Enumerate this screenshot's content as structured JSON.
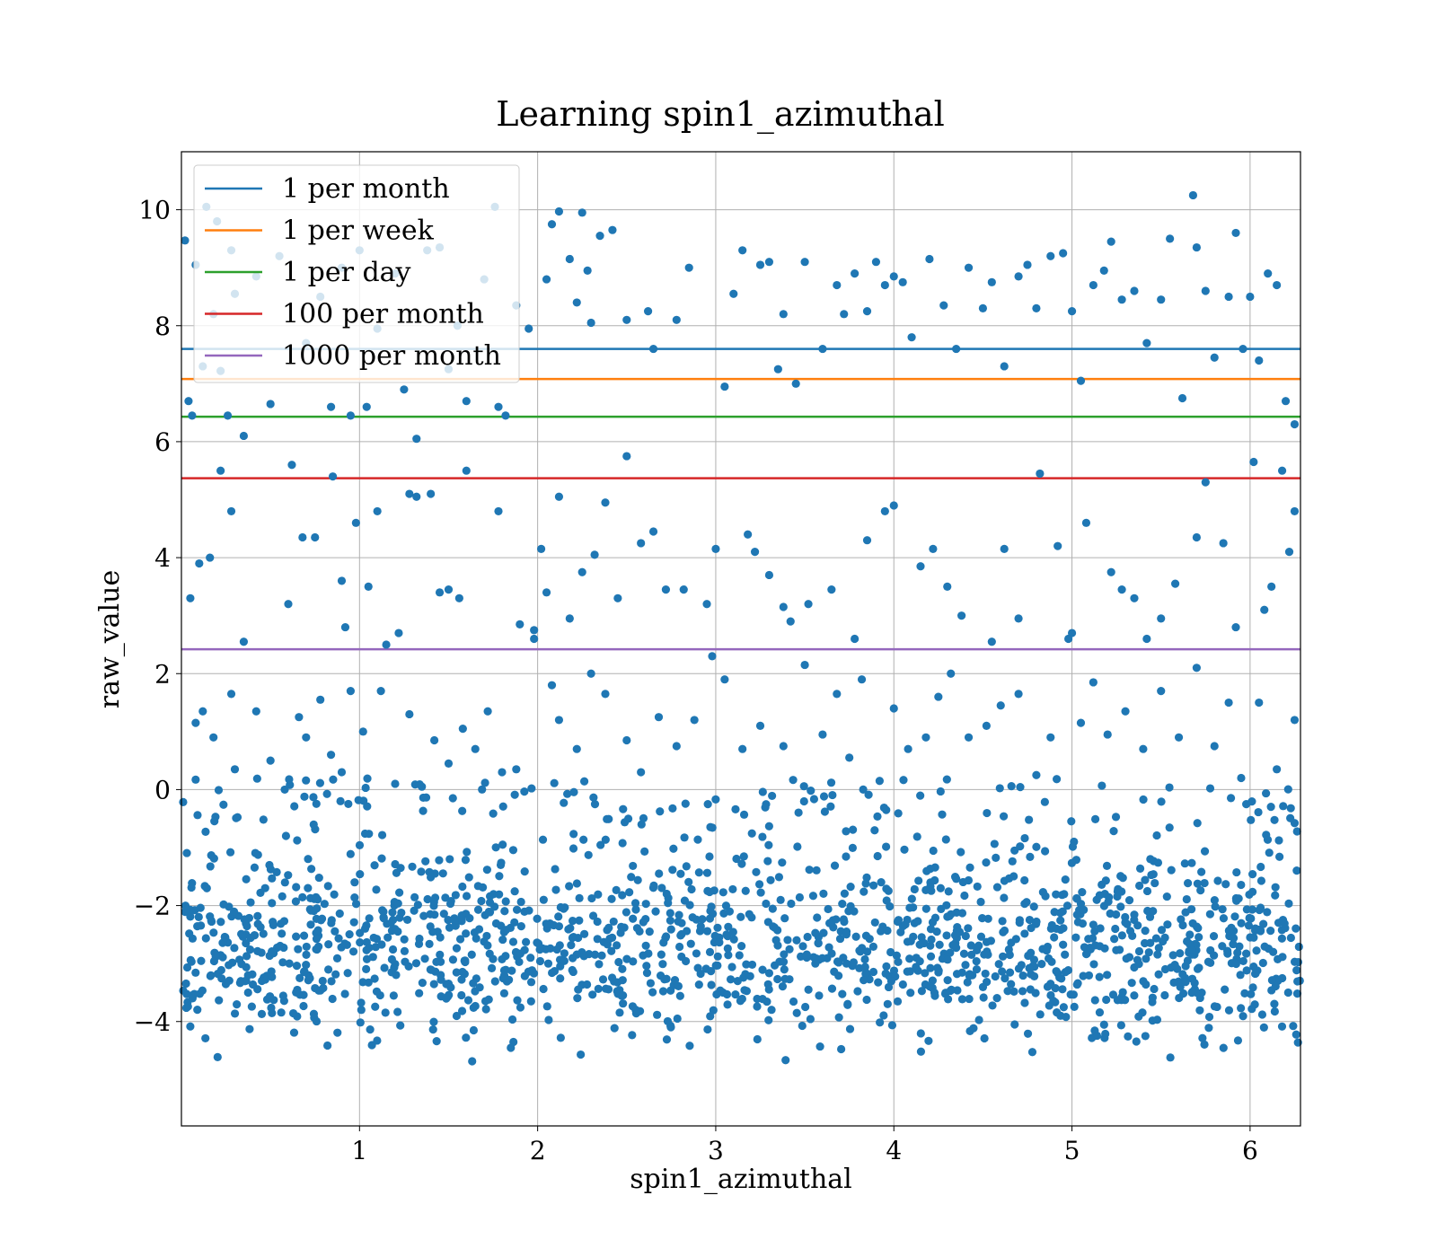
{
  "chart_data": {
    "type": "scatter",
    "title": "Learning spin1_azimuthal",
    "xlabel": "spin1_azimuthal",
    "ylabel": "raw_value",
    "xlim": [
      0,
      6.283
    ],
    "ylim": [
      -5.8,
      11.0
    ],
    "x_ticks": [
      1,
      2,
      3,
      4,
      5,
      6
    ],
    "x_tick_labels": [
      "1",
      "2",
      "3",
      "4",
      "5",
      "6"
    ],
    "y_ticks": [
      -4,
      -2,
      0,
      2,
      4,
      6,
      8,
      10
    ],
    "y_tick_labels": [
      "−4",
      "−2",
      "0",
      "2",
      "4",
      "6",
      "8",
      "10"
    ],
    "grid": true,
    "legend_placement": "upper-left",
    "scatter_color": "#1f77b4",
    "scatter_note_points_sampled": true,
    "thresholds": [
      {
        "name": "1 per month",
        "y": 7.6,
        "color": "#1f77b4"
      },
      {
        "name": "1 per week",
        "y": 7.08,
        "color": "#ff7f0e"
      },
      {
        "name": "1 per day",
        "y": 6.43,
        "color": "#2ca02c"
      },
      {
        "name": "100 per month",
        "y": 5.37,
        "color": "#d62728"
      },
      {
        "name": "1000 per month",
        "y": 2.42,
        "color": "#9467bd"
      }
    ],
    "points": [
      [
        0.02,
        9.47
      ],
      [
        0.04,
        6.7
      ],
      [
        0.06,
        6.45
      ],
      [
        0.08,
        9.05
      ],
      [
        0.12,
        7.3
      ],
      [
        0.14,
        10.05
      ],
      [
        0.18,
        8.2
      ],
      [
        0.2,
        9.8
      ],
      [
        0.22,
        7.22
      ],
      [
        0.26,
        6.45
      ],
      [
        0.28,
        9.3
      ],
      [
        0.3,
        8.55
      ],
      [
        0.35,
        6.1
      ],
      [
        0.42,
        8.85
      ],
      [
        0.5,
        6.65
      ],
      [
        0.55,
        9.2
      ],
      [
        0.62,
        5.6
      ],
      [
        0.7,
        7.7
      ],
      [
        0.78,
        8.5
      ],
      [
        0.84,
        6.6
      ],
      [
        0.9,
        9.0
      ],
      [
        0.95,
        6.45
      ],
      [
        1.0,
        9.3
      ],
      [
        1.04,
        6.6
      ],
      [
        1.1,
        7.95
      ],
      [
        1.2,
        8.9
      ],
      [
        1.25,
        6.9
      ],
      [
        1.32,
        6.05
      ],
      [
        1.38,
        9.3
      ],
      [
        1.45,
        9.35
      ],
      [
        1.5,
        7.25
      ],
      [
        1.55,
        8.0
      ],
      [
        1.6,
        6.7
      ],
      [
        1.7,
        8.8
      ],
      [
        1.76,
        10.05
      ],
      [
        1.78,
        6.6
      ],
      [
        1.82,
        6.45
      ],
      [
        1.88,
        8.35
      ],
      [
        1.95,
        7.95
      ],
      [
        2.05,
        8.8
      ],
      [
        2.08,
        9.75
      ],
      [
        2.12,
        9.97
      ],
      [
        2.18,
        9.15
      ],
      [
        2.22,
        8.4
      ],
      [
        2.25,
        9.95
      ],
      [
        2.28,
        8.95
      ],
      [
        2.3,
        8.05
      ],
      [
        2.35,
        9.55
      ],
      [
        2.42,
        9.65
      ],
      [
        2.5,
        8.1
      ],
      [
        2.62,
        8.25
      ],
      [
        2.65,
        7.6
      ],
      [
        2.78,
        8.1
      ],
      [
        2.85,
        9.0
      ],
      [
        3.05,
        6.95
      ],
      [
        3.1,
        8.55
      ],
      [
        3.15,
        9.3
      ],
      [
        3.25,
        9.05
      ],
      [
        3.3,
        9.1
      ],
      [
        3.35,
        7.25
      ],
      [
        3.38,
        8.2
      ],
      [
        3.45,
        7.0
      ],
      [
        3.5,
        9.1
      ],
      [
        3.6,
        7.6
      ],
      [
        3.68,
        8.7
      ],
      [
        3.72,
        8.2
      ],
      [
        3.78,
        8.9
      ],
      [
        3.85,
        8.25
      ],
      [
        3.9,
        9.1
      ],
      [
        3.95,
        8.7
      ],
      [
        4.0,
        8.85
      ],
      [
        4.05,
        8.75
      ],
      [
        4.1,
        7.8
      ],
      [
        4.2,
        9.15
      ],
      [
        4.28,
        8.35
      ],
      [
        4.35,
        7.6
      ],
      [
        4.42,
        9.0
      ],
      [
        4.5,
        8.3
      ],
      [
        4.55,
        8.75
      ],
      [
        4.62,
        7.3
      ],
      [
        4.7,
        8.85
      ],
      [
        4.75,
        9.05
      ],
      [
        4.8,
        8.3
      ],
      [
        4.88,
        9.2
      ],
      [
        4.95,
        9.25
      ],
      [
        5.0,
        8.25
      ],
      [
        5.05,
        7.05
      ],
      [
        5.12,
        8.7
      ],
      [
        5.18,
        8.95
      ],
      [
        5.22,
        9.45
      ],
      [
        5.28,
        8.45
      ],
      [
        5.35,
        8.6
      ],
      [
        5.42,
        7.7
      ],
      [
        5.5,
        8.45
      ],
      [
        5.55,
        9.5
      ],
      [
        5.62,
        6.75
      ],
      [
        5.68,
        10.25
      ],
      [
        5.7,
        9.35
      ],
      [
        5.75,
        8.6
      ],
      [
        5.8,
        7.45
      ],
      [
        5.88,
        8.5
      ],
      [
        5.92,
        9.6
      ],
      [
        5.96,
        7.6
      ],
      [
        6.0,
        8.5
      ],
      [
        6.05,
        7.4
      ],
      [
        6.1,
        8.9
      ],
      [
        6.15,
        8.7
      ],
      [
        6.2,
        6.7
      ],
      [
        6.25,
        6.3
      ],
      [
        0.05,
        3.3
      ],
      [
        0.1,
        3.9
      ],
      [
        0.16,
        4.0
      ],
      [
        0.22,
        5.5
      ],
      [
        0.28,
        4.8
      ],
      [
        0.35,
        2.55
      ],
      [
        0.6,
        3.2
      ],
      [
        0.68,
        4.35
      ],
      [
        0.75,
        4.35
      ],
      [
        0.85,
        5.4
      ],
      [
        0.9,
        3.6
      ],
      [
        0.92,
        2.8
      ],
      [
        0.98,
        4.6
      ],
      [
        1.05,
        3.5
      ],
      [
        1.1,
        4.8
      ],
      [
        1.15,
        2.5
      ],
      [
        1.22,
        2.7
      ],
      [
        1.28,
        5.1
      ],
      [
        1.32,
        5.05
      ],
      [
        1.4,
        5.1
      ],
      [
        1.45,
        3.4
      ],
      [
        1.5,
        3.45
      ],
      [
        1.56,
        3.3
      ],
      [
        1.6,
        5.5
      ],
      [
        1.78,
        4.8
      ],
      [
        1.9,
        2.85
      ],
      [
        1.98,
        2.75
      ],
      [
        2.02,
        4.15
      ],
      [
        2.05,
        3.4
      ],
      [
        2.12,
        5.05
      ],
      [
        2.18,
        2.95
      ],
      [
        2.25,
        3.75
      ],
      [
        2.32,
        4.05
      ],
      [
        2.38,
        4.95
      ],
      [
        2.45,
        3.3
      ],
      [
        2.5,
        5.75
      ],
      [
        2.58,
        4.25
      ],
      [
        2.65,
        4.45
      ],
      [
        2.72,
        3.45
      ],
      [
        2.82,
        3.45
      ],
      [
        2.95,
        3.2
      ],
      [
        3.0,
        4.15
      ],
      [
        3.18,
        4.4
      ],
      [
        3.22,
        4.1
      ],
      [
        3.3,
        3.7
      ],
      [
        3.38,
        3.15
      ],
      [
        3.42,
        2.9
      ],
      [
        3.52,
        3.2
      ],
      [
        3.65,
        3.45
      ],
      [
        3.78,
        2.6
      ],
      [
        3.85,
        4.3
      ],
      [
        3.95,
        4.8
      ],
      [
        4.0,
        4.9
      ],
      [
        4.15,
        3.85
      ],
      [
        4.22,
        4.15
      ],
      [
        4.3,
        3.5
      ],
      [
        4.38,
        3.0
      ],
      [
        4.55,
        2.55
      ],
      [
        4.62,
        4.15
      ],
      [
        4.7,
        2.95
      ],
      [
        4.82,
        5.45
      ],
      [
        4.92,
        4.2
      ],
      [
        5.0,
        2.7
      ],
      [
        5.08,
        4.6
      ],
      [
        5.22,
        3.75
      ],
      [
        5.28,
        3.45
      ],
      [
        5.35,
        3.3
      ],
      [
        5.42,
        2.6
      ],
      [
        5.5,
        2.95
      ],
      [
        5.58,
        3.55
      ],
      [
        5.7,
        4.35
      ],
      [
        5.75,
        5.3
      ],
      [
        5.85,
        4.25
      ],
      [
        5.92,
        2.8
      ],
      [
        6.02,
        5.65
      ],
      [
        6.08,
        3.1
      ],
      [
        6.12,
        3.5
      ],
      [
        6.18,
        5.5
      ],
      [
        6.22,
        4.1
      ],
      [
        6.25,
        4.8
      ],
      [
        0.08,
        1.15
      ],
      [
        0.12,
        1.35
      ],
      [
        0.18,
        0.9
      ],
      [
        0.28,
        1.65
      ],
      [
        0.3,
        0.35
      ],
      [
        0.42,
        1.35
      ],
      [
        0.5,
        0.5
      ],
      [
        0.58,
        0.0
      ],
      [
        0.66,
        1.25
      ],
      [
        0.7,
        0.9
      ],
      [
        0.78,
        1.55
      ],
      [
        0.84,
        0.6
      ],
      [
        0.9,
        0.3
      ],
      [
        0.95,
        1.7
      ],
      [
        1.02,
        1.0
      ],
      [
        1.12,
        1.7
      ],
      [
        1.2,
        0.1
      ],
      [
        1.28,
        1.3
      ],
      [
        1.35,
        0.05
      ],
      [
        1.42,
        0.85
      ],
      [
        1.5,
        0.45
      ],
      [
        1.58,
        1.05
      ],
      [
        1.65,
        0.7
      ],
      [
        1.72,
        1.35
      ],
      [
        1.8,
        0.3
      ],
      [
        1.88,
        0.35
      ],
      [
        1.98,
        2.6
      ],
      [
        2.08,
        1.8
      ],
      [
        2.12,
        1.2
      ],
      [
        2.22,
        0.7
      ],
      [
        2.3,
        2.0
      ],
      [
        2.38,
        1.65
      ],
      [
        2.5,
        0.85
      ],
      [
        2.58,
        0.3
      ],
      [
        2.68,
        1.25
      ],
      [
        2.78,
        0.75
      ],
      [
        2.88,
        1.2
      ],
      [
        2.98,
        2.3
      ],
      [
        3.05,
        1.9
      ],
      [
        3.15,
        0.7
      ],
      [
        3.25,
        1.1
      ],
      [
        3.38,
        0.75
      ],
      [
        3.5,
        2.15
      ],
      [
        3.6,
        0.95
      ],
      [
        3.68,
        1.65
      ],
      [
        3.75,
        0.55
      ],
      [
        3.82,
        1.9
      ],
      [
        3.92,
        0.15
      ],
      [
        4.0,
        1.4
      ],
      [
        4.08,
        0.7
      ],
      [
        4.18,
        0.9
      ],
      [
        4.25,
        1.6
      ],
      [
        4.32,
        2.0
      ],
      [
        4.42,
        0.9
      ],
      [
        4.52,
        1.1
      ],
      [
        4.6,
        1.45
      ],
      [
        4.7,
        1.65
      ],
      [
        4.8,
        0.25
      ],
      [
        4.88,
        0.9
      ],
      [
        4.98,
        2.6
      ],
      [
        5.05,
        1.15
      ],
      [
        5.12,
        1.85
      ],
      [
        5.2,
        0.95
      ],
      [
        5.3,
        1.35
      ],
      [
        5.4,
        0.7
      ],
      [
        5.5,
        1.7
      ],
      [
        5.6,
        0.9
      ],
      [
        5.7,
        2.1
      ],
      [
        5.8,
        0.75
      ],
      [
        5.88,
        1.5
      ],
      [
        5.95,
        0.2
      ],
      [
        6.05,
        1.5
      ],
      [
        6.15,
        0.35
      ],
      [
        6.25,
        1.2
      ]
    ],
    "dense_cluster": {
      "x_range": [
        0.0,
        6.283
      ],
      "y_range": [
        -5.0,
        0.2
      ],
      "count": 1600
    }
  }
}
